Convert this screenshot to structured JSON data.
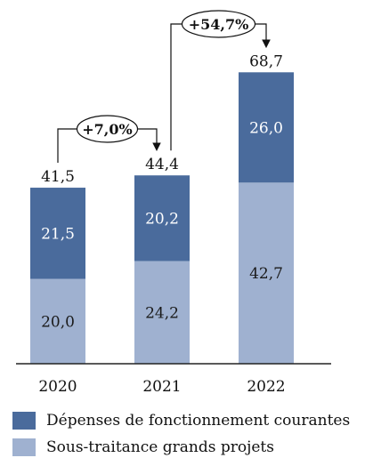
{
  "chart_data": {
    "type": "bar",
    "stacked": true,
    "categories": [
      "2020",
      "2021",
      "2022"
    ],
    "series": [
      {
        "name": "Sous-traitance grands projets",
        "values": [
          20.0,
          24.2,
          42.7
        ],
        "color": "#9fb1d0",
        "labels": [
          "20,0",
          "24,2",
          "42,7"
        ]
      },
      {
        "name": "Dépenses de fonctionnement courantes",
        "values": [
          21.5,
          20.2,
          26.0
        ],
        "color": "#4a6b9c",
        "labels": [
          "21,5",
          "20,2",
          "26,0"
        ]
      }
    ],
    "totals": [
      41.5,
      44.4,
      68.7
    ],
    "total_labels": [
      "41,5",
      "44,4",
      "68,7"
    ],
    "annotations": [
      {
        "from": "2020",
        "to": "2021",
        "text": "+7,0%"
      },
      {
        "from": "2021",
        "to": "2022",
        "text": "+54,7%"
      }
    ],
    "ylim": [
      0,
      70
    ],
    "grid": false,
    "legend_position": "bottom"
  },
  "legend": [
    {
      "label": "Dépenses de fonctionnement courantes",
      "color": "#4a6b9c"
    },
    {
      "label": "Sous-traitance grands projets",
      "color": "#9fb1d0"
    }
  ]
}
